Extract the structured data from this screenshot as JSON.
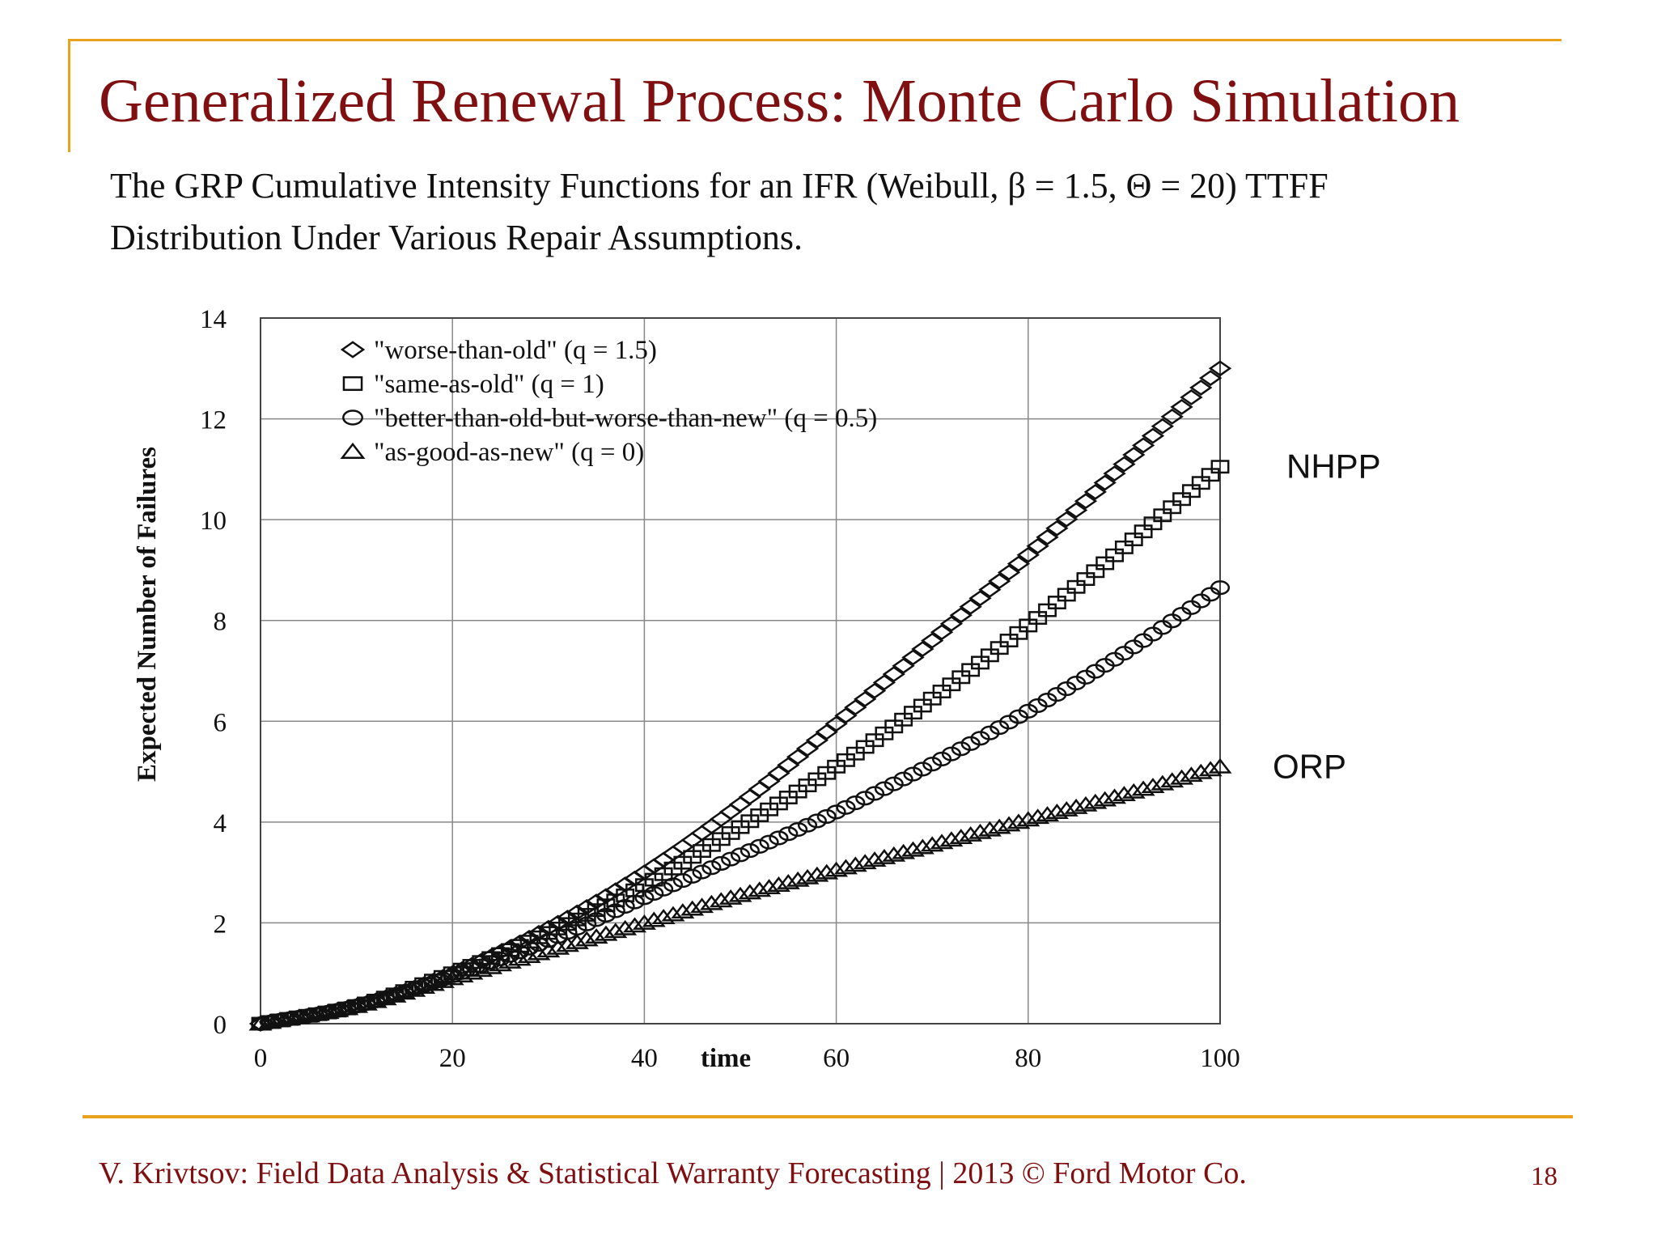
{
  "slide": {
    "title": "Generalized Renewal Process: Monte Carlo Simulation",
    "subtitle_line1": "The GRP Cumulative Intensity Functions for an IFR (Weibull, β = 1.5, Θ = 20) TTFF",
    "subtitle_line2": "Distribution Under Various Repair Assumptions.",
    "footer": "V. Krivtsov: Field Data Analysis & Statistical Warranty Forecasting |  2013 © Ford Motor Co.",
    "page_number": "18",
    "accent_color": "#e8a21c",
    "title_color": "#7f0f10"
  },
  "chart_data": {
    "type": "scatter",
    "xlabel": "time",
    "ylabel": "Expected  Number of Failures",
    "xlim": [
      0,
      100
    ],
    "ylim": [
      0,
      14
    ],
    "xticks": [
      0,
      20,
      40,
      60,
      80,
      100
    ],
    "yticks": [
      0,
      2,
      4,
      6,
      8,
      10,
      12,
      14
    ],
    "grid": true,
    "legend_position": "top-left",
    "x": [
      0,
      10,
      20,
      30,
      40,
      50,
      60,
      70,
      80,
      90,
      100
    ],
    "series": [
      {
        "name": "\"worse-than-old\" (q = 1.5)",
        "marker": "diamond",
        "y": [
          0,
          0.35,
          1.0,
          1.9,
          3.0,
          4.35,
          5.95,
          7.6,
          9.3,
          11.1,
          13.0
        ]
      },
      {
        "name": "\"same-as-old\" (q = 1)",
        "marker": "square",
        "y": [
          0,
          0.35,
          1.0,
          1.8,
          2.75,
          3.9,
          5.1,
          6.45,
          7.9,
          9.45,
          11.05
        ]
      },
      {
        "name": "\"better-than-old-but-worse-than-new\" (q = 0.5)",
        "marker": "circle",
        "y": [
          0,
          0.35,
          0.95,
          1.65,
          2.5,
          3.35,
          4.2,
          5.15,
          6.2,
          7.35,
          8.65
        ]
      },
      {
        "name": "\"as-good-as-new\" (q = 0)",
        "marker": "triangle",
        "y": [
          0,
          0.35,
          0.9,
          1.45,
          2.0,
          2.55,
          3.05,
          3.55,
          4.05,
          4.55,
          5.1
        ]
      }
    ],
    "annotations": [
      {
        "text": "NHPP",
        "x": 100,
        "y": 11.05
      },
      {
        "text": "ORP",
        "x": 100,
        "y": 5.1
      }
    ]
  }
}
